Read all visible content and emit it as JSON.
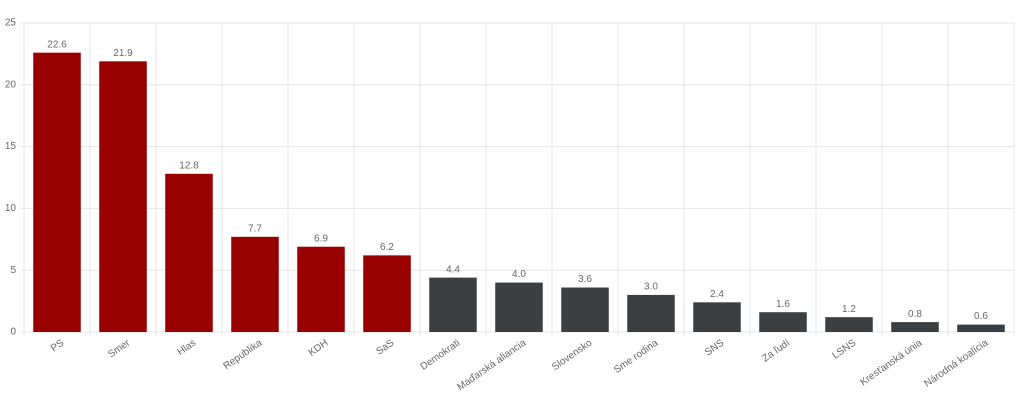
{
  "chart_data": {
    "type": "bar",
    "categories": [
      "PS",
      "Smer",
      "Hlas",
      "Republika",
      "KDH",
      "SaS",
      "Demokrati",
      "Maďarská aliancia",
      "Slovensko",
      "Sme rodina",
      "SNS",
      "Za ľudí",
      "LSNS",
      "Kresťanská únia",
      "Národná koalícia"
    ],
    "values": [
      22.6,
      21.9,
      12.8,
      7.7,
      6.9,
      6.2,
      4.4,
      4.0,
      3.6,
      3.0,
      2.4,
      1.6,
      1.2,
      0.8,
      0.6
    ],
    "value_labels": [
      "22.6",
      "21.9",
      "12.8",
      "7.7",
      "6.9",
      "6.2",
      "4.4",
      "4.0",
      "3.6",
      "3.0",
      "2.4",
      "1.6",
      "1.2",
      "0.8",
      "0.6"
    ],
    "colors": [
      "#990000",
      "#990000",
      "#990000",
      "#990000",
      "#990000",
      "#990000",
      "#3b3f42",
      "#3b3f42",
      "#3b3f42",
      "#3b3f42",
      "#3b3f42",
      "#3b3f42",
      "#3b3f42",
      "#3b3f42",
      "#3b3f42"
    ],
    "ylim": [
      0,
      25
    ],
    "yticks": [
      0,
      5,
      10,
      15,
      20,
      25
    ],
    "grid": true
  }
}
